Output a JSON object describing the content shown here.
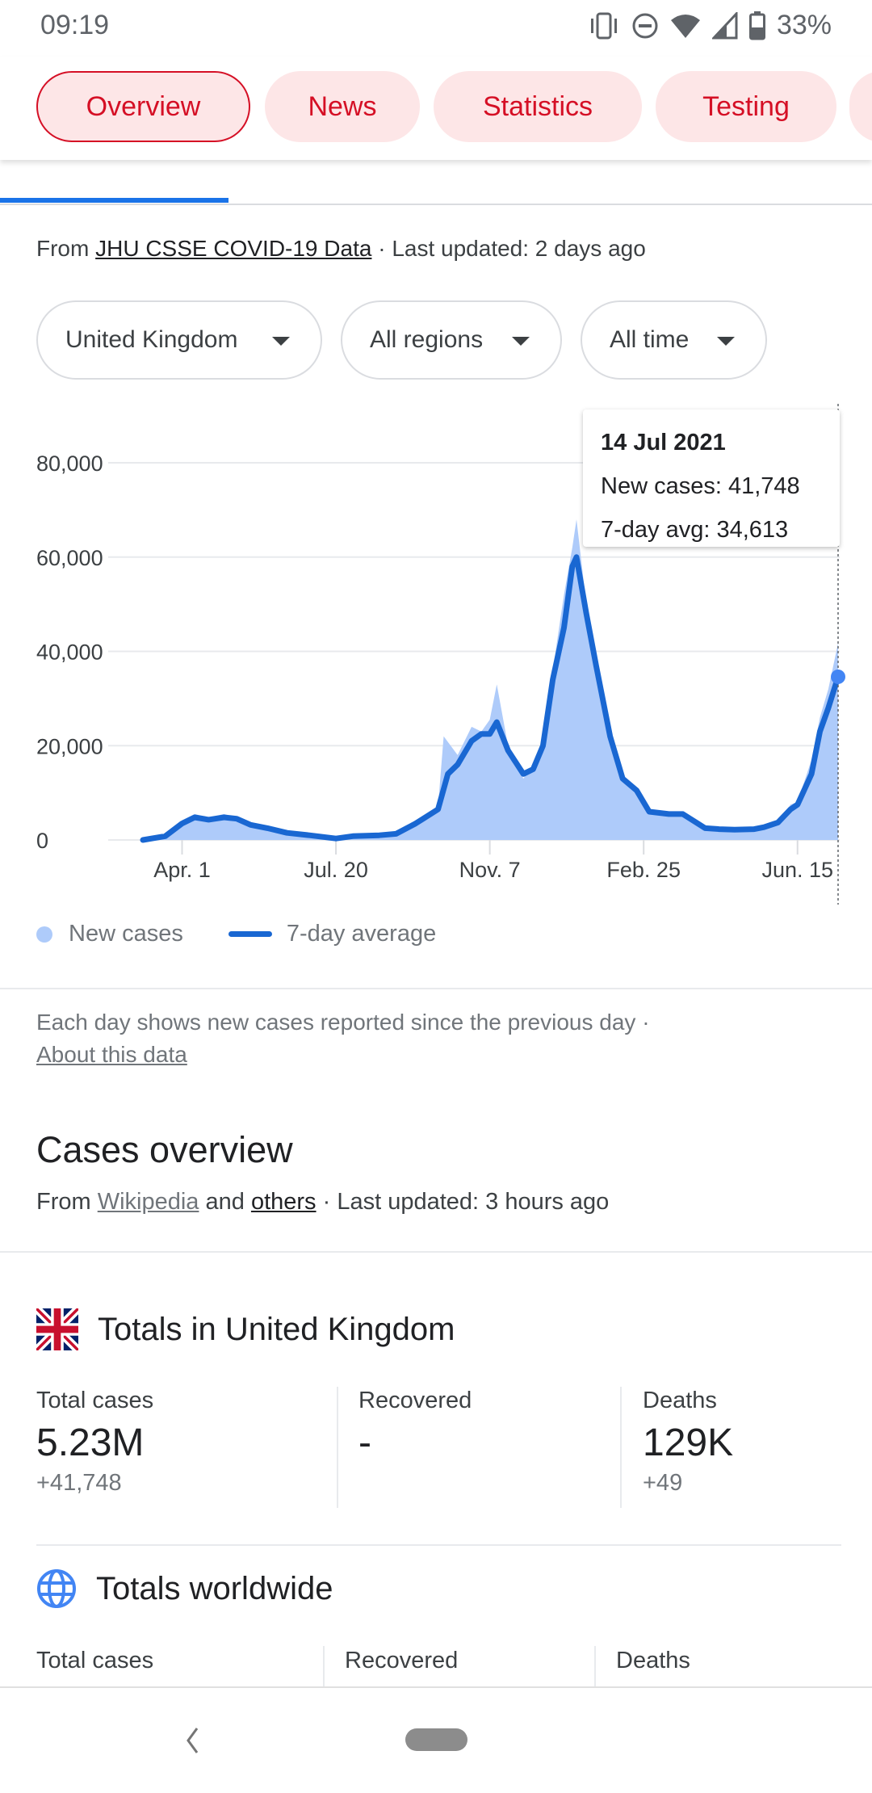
{
  "status_bar": {
    "time": "09:19",
    "battery": "33%",
    "icons": [
      "vibrate-icon",
      "do-not-disturb-icon",
      "wifi-icon",
      "signal-icon",
      "battery-icon"
    ]
  },
  "tabs": [
    {
      "label": "Overview",
      "active": true
    },
    {
      "label": "News"
    },
    {
      "label": "Statistics"
    },
    {
      "label": "Testing"
    }
  ],
  "source": {
    "prefix": "From ",
    "link": "JHU CSSE COVID-19 Data",
    "suffix": " · Last updated: 2 days ago"
  },
  "filters": [
    {
      "label": "United Kingdom"
    },
    {
      "label": "All regions"
    },
    {
      "label": "All time"
    }
  ],
  "tooltip": {
    "date": "14 Jul 2021",
    "new_cases": "New cases: 41,748",
    "avg": "7-day avg: 34,613"
  },
  "legend": {
    "new_cases": "New cases",
    "avg": "7-day average"
  },
  "colors": {
    "accent": "#d50f25",
    "chip_bg": "#fde6e7",
    "line": "#1967d2",
    "area": "#aecbfa",
    "tab_indicator": "#1a73e8"
  },
  "chart_data": {
    "type": "line",
    "ylim": [
      0,
      80000
    ],
    "yticks": [
      "0",
      "20,000",
      "40,000",
      "60,000",
      "80,000"
    ],
    "ytick_values": [
      0,
      20000,
      40000,
      60000,
      80000
    ],
    "xticks": [
      {
        "label": "Apr. 1",
        "date": "2020-04-01"
      },
      {
        "label": "Jul. 20",
        "date": "2020-07-20"
      },
      {
        "label": "Nov. 7",
        "date": "2020-11-07"
      },
      {
        "label": "Feb. 25",
        "date": "2021-02-25"
      },
      {
        "label": "Jun. 15",
        "date": "2021-06-15"
      }
    ],
    "xlim": [
      "2020-03-04",
      "2021-07-14"
    ],
    "grid": true,
    "legend_placement": "bottom-left",
    "series": [
      {
        "name": "New cases",
        "type": "area",
        "points": [
          [
            "2020-03-04",
            0
          ],
          [
            "2020-03-20",
            1000
          ],
          [
            "2020-04-01",
            4200
          ],
          [
            "2020-04-10",
            5500
          ],
          [
            "2020-04-20",
            4800
          ],
          [
            "2020-05-01",
            5500
          ],
          [
            "2020-05-10",
            4700
          ],
          [
            "2020-05-20",
            3300
          ],
          [
            "2020-06-01",
            2600
          ],
          [
            "2020-06-15",
            1600
          ],
          [
            "2020-07-01",
            1100
          ],
          [
            "2020-07-20",
            800
          ],
          [
            "2020-08-01",
            900
          ],
          [
            "2020-08-20",
            1100
          ],
          [
            "2020-09-01",
            1500
          ],
          [
            "2020-09-15",
            4000
          ],
          [
            "2020-10-01",
            7100
          ],
          [
            "2020-10-05",
            22000
          ],
          [
            "2020-10-15",
            18000
          ],
          [
            "2020-10-25",
            24000
          ],
          [
            "2020-11-01",
            23000
          ],
          [
            "2020-11-07",
            25500
          ],
          [
            "2020-11-12",
            33000
          ],
          [
            "2020-11-20",
            20000
          ],
          [
            "2020-12-01",
            13000
          ],
          [
            "2020-12-08",
            16000
          ],
          [
            "2020-12-15",
            21000
          ],
          [
            "2020-12-22",
            36000
          ],
          [
            "2020-12-30",
            52000
          ],
          [
            "2021-01-05",
            62000
          ],
          [
            "2021-01-08",
            68000
          ],
          [
            "2021-01-15",
            50000
          ],
          [
            "2021-01-22",
            38000
          ],
          [
            "2021-02-01",
            21000
          ],
          [
            "2021-02-10",
            12500
          ],
          [
            "2021-02-20",
            10000
          ],
          [
            "2021-03-01",
            6500
          ],
          [
            "2021-03-15",
            5500
          ],
          [
            "2021-03-25",
            5800
          ],
          [
            "2021-04-10",
            2800
          ],
          [
            "2021-04-20",
            2500
          ],
          [
            "2021-05-01",
            2300
          ],
          [
            "2021-05-15",
            2500
          ],
          [
            "2021-05-22",
            3000
          ],
          [
            "2021-06-01",
            4000
          ],
          [
            "2021-06-10",
            7500
          ],
          [
            "2021-06-15",
            8100
          ],
          [
            "2021-06-25",
            17000
          ],
          [
            "2021-07-01",
            26000
          ],
          [
            "2021-07-07",
            32000
          ],
          [
            "2021-07-14",
            41748
          ]
        ]
      },
      {
        "name": "7-day average",
        "type": "line",
        "points": [
          [
            "2020-03-04",
            0
          ],
          [
            "2020-03-20",
            800
          ],
          [
            "2020-04-01",
            3500
          ],
          [
            "2020-04-10",
            4800
          ],
          [
            "2020-04-20",
            4300
          ],
          [
            "2020-05-01",
            4800
          ],
          [
            "2020-05-10",
            4500
          ],
          [
            "2020-05-20",
            3200
          ],
          [
            "2020-06-01",
            2500
          ],
          [
            "2020-06-15",
            1500
          ],
          [
            "2020-07-01",
            1000
          ],
          [
            "2020-07-20",
            300
          ],
          [
            "2020-08-01",
            800
          ],
          [
            "2020-08-20",
            1000
          ],
          [
            "2020-09-01",
            1300
          ],
          [
            "2020-09-15",
            3500
          ],
          [
            "2020-10-01",
            6500
          ],
          [
            "2020-10-08",
            14000
          ],
          [
            "2020-10-15",
            16000
          ],
          [
            "2020-10-25",
            21000
          ],
          [
            "2020-11-01",
            22500
          ],
          [
            "2020-11-07",
            22500
          ],
          [
            "2020-11-12",
            25000
          ],
          [
            "2020-11-20",
            19000
          ],
          [
            "2020-12-01",
            14000
          ],
          [
            "2020-12-08",
            15000
          ],
          [
            "2020-12-15",
            20000
          ],
          [
            "2020-12-22",
            34000
          ],
          [
            "2020-12-30",
            45000
          ],
          [
            "2021-01-05",
            58000
          ],
          [
            "2021-01-08",
            60000
          ],
          [
            "2021-01-15",
            48000
          ],
          [
            "2021-01-22",
            37000
          ],
          [
            "2021-02-01",
            22000
          ],
          [
            "2021-02-10",
            13000
          ],
          [
            "2021-02-20",
            10500
          ],
          [
            "2021-03-01",
            6000
          ],
          [
            "2021-03-15",
            5500
          ],
          [
            "2021-03-25",
            5500
          ],
          [
            "2021-04-10",
            2500
          ],
          [
            "2021-04-20",
            2300
          ],
          [
            "2021-05-01",
            2200
          ],
          [
            "2021-05-15",
            2300
          ],
          [
            "2021-05-22",
            2700
          ],
          [
            "2021-06-01",
            3700
          ],
          [
            "2021-06-10",
            6500
          ],
          [
            "2021-06-15",
            7500
          ],
          [
            "2021-06-25",
            14000
          ],
          [
            "2021-07-01",
            23000
          ],
          [
            "2021-07-07",
            28000
          ],
          [
            "2021-07-14",
            34613
          ]
        ]
      }
    ]
  },
  "note": {
    "text": "Each day shows new cases reported since the previous day  ·",
    "link": "About this data"
  },
  "overview": {
    "title": "Cases overview",
    "from": "From ",
    "wiki": "Wikipedia",
    "and": " and ",
    "others": "others",
    "updated": " · Last updated: 3 hours ago"
  },
  "uk": {
    "title": "Totals in United Kingdom",
    "stats": [
      {
        "label": "Total cases",
        "value": "5.23M",
        "delta": "+41,748"
      },
      {
        "label": "Recovered",
        "value": "-",
        "delta": ""
      },
      {
        "label": "Deaths",
        "value": "129K",
        "delta": "+49"
      }
    ]
  },
  "world": {
    "title": "Totals worldwide",
    "stats": [
      {
        "label": "Total cases"
      },
      {
        "label": "Recovered"
      },
      {
        "label": "Deaths"
      }
    ]
  }
}
